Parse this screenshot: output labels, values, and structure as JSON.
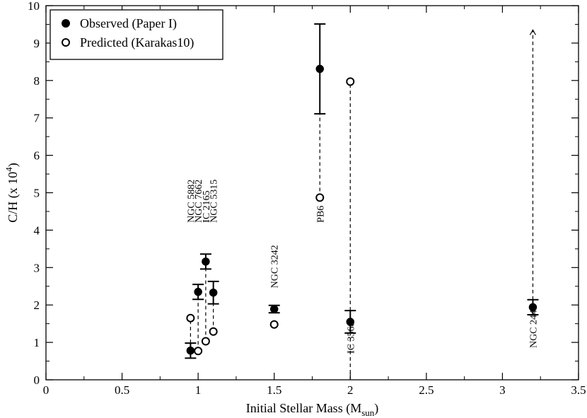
{
  "chart_data": {
    "type": "scatter",
    "xlabel": "Initial Stellar Mass (M",
    "xlabel_sub": "sun",
    "xlabel_end": ")",
    "ylabel": "C/H (x 10",
    "ylabel_sup": "4",
    "ylabel_end": ")",
    "xlim": [
      0,
      3.5
    ],
    "ylim": [
      0,
      10
    ],
    "x_ticks": [
      0,
      0.5,
      1,
      1.5,
      2,
      2.5,
      3,
      3.5
    ],
    "x_tick_labels": [
      "0",
      "0.5",
      "1",
      "1.5",
      "2",
      "2.5",
      "3",
      "3.5"
    ],
    "y_ticks": [
      0,
      1,
      2,
      3,
      4,
      5,
      6,
      7,
      8,
      9,
      10
    ],
    "y_tick_labels": [
      "0",
      "1",
      "2",
      "3",
      "4",
      "5",
      "6",
      "7",
      "8",
      "9",
      "10"
    ],
    "grid": false,
    "legend_position": "top-left",
    "series": [
      {
        "name": "Observed (Paper I)",
        "marker": "filled-circle",
        "points": [
          {
            "object": "NGC 5882",
            "x": 0.95,
            "y": 0.78,
            "err_low": 0.58,
            "err_high": 0.98
          },
          {
            "object": "NGC 7662",
            "x": 1.0,
            "y": 2.35,
            "err_low": 2.15,
            "err_high": 2.55
          },
          {
            "object": "IC 2165",
            "x": 1.05,
            "y": 3.16,
            "err_low": 2.96,
            "err_high": 3.36
          },
          {
            "object": "NGC 5315",
            "x": 1.1,
            "y": 2.33,
            "err_low": 2.03,
            "err_high": 2.63
          },
          {
            "object": "NGC 3242",
            "x": 1.5,
            "y": 1.89,
            "err_low": 1.79,
            "err_high": 1.99
          },
          {
            "object": "PB6",
            "x": 1.8,
            "y": 8.31,
            "err_low": 7.11,
            "err_high": 9.51
          },
          {
            "object": "IC 3568",
            "x": 2.0,
            "y": 1.55,
            "err_low": 1.25,
            "err_high": 1.85
          },
          {
            "object": "NGC 2440",
            "x": 3.2,
            "y": 1.94,
            "err_low": 1.74,
            "err_high": 2.14
          }
        ]
      },
      {
        "name": "Predicted (Karakas10)",
        "marker": "open-circle",
        "points": [
          {
            "object": "NGC 5882",
            "x": 0.95,
            "y": 1.65
          },
          {
            "object": "NGC 7662",
            "x": 1.0,
            "y": 0.77
          },
          {
            "object": "IC 2165",
            "x": 1.05,
            "y": 1.03
          },
          {
            "object": "NGC 5315",
            "x": 1.1,
            "y": 1.29
          },
          {
            "object": "NGC 3242",
            "x": 1.5,
            "y": 1.48
          },
          {
            "object": "PB6",
            "x": 1.8,
            "y": 4.87
          },
          {
            "object": "IC 3568",
            "x": 2.0,
            "y": 7.97
          }
        ]
      }
    ],
    "upper_limit_arrow": {
      "object": "NGC 2440",
      "x": 3.2,
      "y_from": 2.14,
      "y_to": 9.35
    },
    "connectors": [
      {
        "x": 0.95,
        "y1": 0.98,
        "y2": 1.65
      },
      {
        "x": 1.0,
        "y1": 0.77,
        "y2": 2.15
      },
      {
        "x": 1.05,
        "y1": 1.03,
        "y2": 2.96
      },
      {
        "x": 1.1,
        "y1": 1.29,
        "y2": 2.03
      },
      {
        "x": 1.8,
        "y1": 4.87,
        "y2": 7.11
      },
      {
        "x": 2.0,
        "y1": 1.85,
        "y2": 7.97
      },
      {
        "x": 2.0,
        "y1": 0.0,
        "y2": 1.25
      }
    ],
    "annotations": [
      {
        "text": "NGC 5882",
        "x": 0.95,
        "y": 4.2
      },
      {
        "text": "NGC 7662",
        "x": 1.0,
        "y": 4.2
      },
      {
        "text": "IC 2165",
        "x": 1.05,
        "y": 4.2
      },
      {
        "text": "NGC 5315",
        "x": 1.1,
        "y": 4.2
      },
      {
        "text": "NGC 3242",
        "x": 1.5,
        "y": 2.45
      },
      {
        "text": "PB6",
        "x": 1.8,
        "y": 4.2
      },
      {
        "text": "IC 3568",
        "x": 2.0,
        "y": 0.7
      },
      {
        "text": "NGC 2440",
        "x": 3.2,
        "y": 0.85
      }
    ]
  }
}
